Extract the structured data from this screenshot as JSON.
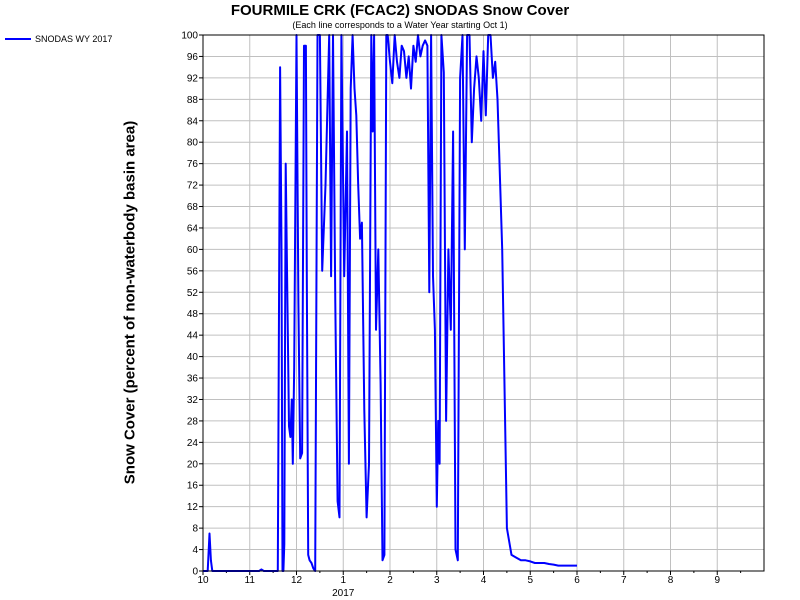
{
  "chart_data": {
    "type": "line",
    "title": "FOURMILE CRK (FCAC2) SNODAS Snow Cover",
    "subtitle": "(Each line corresponds to a Water Year starting Oct 1)",
    "ylabel": "Snow Cover (percent of non-waterbody basin area)",
    "xlabel": "",
    "x_ticks": [
      "10",
      "11",
      "12",
      "1",
      "2",
      "3",
      "4",
      "5",
      "6",
      "7",
      "8",
      "9"
    ],
    "x_year_label": "2017",
    "y_ticks": [
      0,
      4,
      8,
      12,
      16,
      20,
      24,
      28,
      32,
      36,
      40,
      44,
      48,
      52,
      56,
      60,
      64,
      68,
      72,
      76,
      80,
      84,
      88,
      92,
      96,
      100
    ],
    "xlim": [
      0,
      12
    ],
    "ylim": [
      0,
      100
    ],
    "grid": true,
    "legend_position": "top-left",
    "colors": {
      "series": "#0000ff",
      "grid": "#c0c0c0"
    },
    "series": [
      {
        "name": "SNODAS WY 2017",
        "x": [
          0.0,
          0.1,
          0.14,
          0.17,
          0.2,
          0.24,
          0.28,
          0.6,
          1.0,
          1.2,
          1.25,
          1.3,
          1.6,
          1.65,
          1.68,
          1.7,
          1.72,
          1.74,
          1.77,
          1.8,
          1.84,
          1.87,
          1.9,
          1.92,
          1.95,
          2.0,
          2.04,
          2.08,
          2.12,
          2.16,
          2.2,
          2.22,
          2.25,
          2.28,
          2.32,
          2.36,
          2.4,
          2.45,
          2.5,
          2.55,
          2.62,
          2.7,
          2.74,
          2.78,
          2.83,
          2.88,
          2.92,
          2.96,
          3.02,
          3.08,
          3.12,
          3.16,
          3.2,
          3.24,
          3.28,
          3.32,
          3.36,
          3.4,
          3.45,
          3.5,
          3.55,
          3.6,
          3.63,
          3.66,
          3.7,
          3.75,
          3.8,
          3.84,
          3.88,
          3.92,
          3.95,
          4.0,
          4.05,
          4.1,
          4.15,
          4.2,
          4.25,
          4.3,
          4.35,
          4.4,
          4.45,
          4.5,
          4.55,
          4.6,
          4.65,
          4.7,
          4.75,
          4.8,
          4.84,
          4.88,
          4.92,
          4.96,
          5.0,
          5.03,
          5.06,
          5.1,
          5.15,
          5.2,
          5.25,
          5.3,
          5.35,
          5.4,
          5.45,
          5.5,
          5.55,
          5.6,
          5.65,
          5.7,
          5.75,
          5.8,
          5.85,
          5.9,
          5.95,
          6.0,
          6.05,
          6.1,
          6.15,
          6.2,
          6.25,
          6.3,
          6.4,
          6.5,
          6.6,
          6.7,
          6.8,
          6.9,
          7.0,
          7.1,
          7.2,
          7.3,
          7.4,
          7.5,
          7.6,
          7.7,
          7.8,
          7.9,
          8.0
        ],
        "values": [
          0,
          0,
          7,
          2,
          0,
          0,
          0,
          0,
          0,
          0,
          0.3,
          0,
          0,
          94,
          60,
          0,
          0,
          5,
          76,
          55,
          27,
          25,
          32,
          20,
          38,
          100,
          50,
          21,
          22,
          98,
          98,
          55,
          3,
          2,
          1.5,
          0.5,
          0,
          100,
          100,
          56,
          72,
          100,
          55,
          100,
          50,
          13,
          10,
          100,
          55,
          82,
          20,
          90,
          100,
          90,
          85,
          72,
          62,
          65,
          30,
          10,
          20,
          100,
          82,
          100,
          45,
          60,
          35,
          2,
          3,
          100,
          100,
          95,
          91,
          100,
          95,
          92,
          98,
          97,
          92,
          96,
          90,
          98,
          95,
          100,
          96,
          98,
          99,
          98,
          52,
          100,
          55,
          45,
          12,
          28,
          20,
          100,
          93,
          28,
          60,
          45,
          82,
          4,
          2,
          92,
          100,
          60,
          100,
          100,
          80,
          90,
          96,
          92,
          84,
          97,
          85,
          100,
          100,
          92,
          95,
          88,
          60,
          8,
          3,
          2.5,
          2,
          2,
          1.8,
          1.5,
          1.5,
          1.5,
          1.3,
          1.2,
          1,
          1,
          1,
          1,
          1
        ]
      }
    ]
  }
}
